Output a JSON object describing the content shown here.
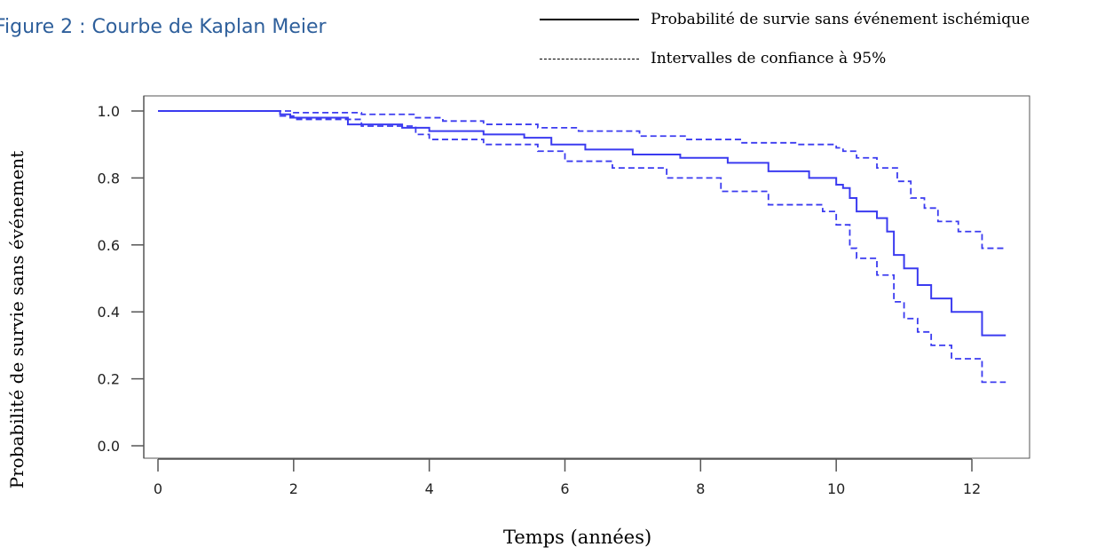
{
  "figure": {
    "title": "Figure 2 : Courbe de Kaplan Meier"
  },
  "legend": {
    "items": [
      {
        "label": "Probabilité de survie sans événement ischémique",
        "style": "solid"
      },
      {
        "label": "Intervalles de confiance à 95%",
        "style": "dashed"
      }
    ]
  },
  "chart_data": {
    "type": "line",
    "title": "",
    "xlabel": "Temps (années)",
    "ylabel": "Probabilité de survie sans événement",
    "xlim": [
      0,
      12.5
    ],
    "ylim": [
      0,
      1.0
    ],
    "xticks": [
      0,
      2,
      4,
      6,
      8,
      10,
      12
    ],
    "yticks": [
      0.0,
      0.2,
      0.4,
      0.6,
      0.8,
      1.0
    ],
    "ytick_labels": [
      "0.0",
      "0.2",
      "0.4",
      "0.6",
      "0.8",
      "1.0"
    ],
    "step": true,
    "grid": false,
    "series_color": "#3b3bf0",
    "series": [
      {
        "style": "solid",
        "x": [
          0,
          1.8,
          1.95,
          2.8,
          3.6,
          4.0,
          4.8,
          5.4,
          5.8,
          6.3,
          7.0,
          7.7,
          8.4,
          9.0,
          9.6,
          10.0,
          10.1,
          10.2,
          10.3,
          10.6,
          10.75,
          10.85,
          11.0,
          11.2,
          11.4,
          11.7,
          12.15,
          12.5
        ],
        "y": [
          1.0,
          0.99,
          0.98,
          0.96,
          0.95,
          0.94,
          0.93,
          0.92,
          0.9,
          0.885,
          0.87,
          0.86,
          0.845,
          0.82,
          0.8,
          0.78,
          0.77,
          0.74,
          0.7,
          0.68,
          0.64,
          0.57,
          0.53,
          0.48,
          0.44,
          0.4,
          0.33,
          0.33
        ]
      },
      {
        "style": "dashed",
        "x": [
          0,
          1.8,
          2.0,
          3.0,
          3.8,
          4.2,
          4.8,
          5.6,
          6.2,
          7.1,
          7.8,
          8.6,
          9.4,
          10.0,
          10.1,
          10.3,
          10.6,
          10.9,
          11.1,
          11.3,
          11.5,
          11.8,
          12.15,
          12.5
        ],
        "y": [
          1.0,
          1.0,
          0.995,
          0.99,
          0.98,
          0.97,
          0.96,
          0.95,
          0.94,
          0.925,
          0.915,
          0.905,
          0.9,
          0.89,
          0.88,
          0.86,
          0.83,
          0.79,
          0.74,
          0.71,
          0.67,
          0.64,
          0.59,
          0.59
        ]
      },
      {
        "style": "dashed",
        "x": [
          0,
          1.8,
          2.0,
          3.0,
          3.8,
          4.0,
          4.8,
          5.6,
          6.0,
          6.7,
          7.5,
          8.3,
          9.0,
          9.6,
          9.8,
          10.0,
          10.2,
          10.3,
          10.6,
          10.85,
          11.0,
          11.2,
          11.4,
          11.7,
          12.15,
          12.5
        ],
        "y": [
          1.0,
          0.985,
          0.975,
          0.955,
          0.93,
          0.915,
          0.9,
          0.88,
          0.85,
          0.83,
          0.8,
          0.76,
          0.72,
          0.72,
          0.7,
          0.66,
          0.59,
          0.56,
          0.51,
          0.43,
          0.38,
          0.34,
          0.3,
          0.26,
          0.19,
          0.19
        ]
      }
    ]
  }
}
